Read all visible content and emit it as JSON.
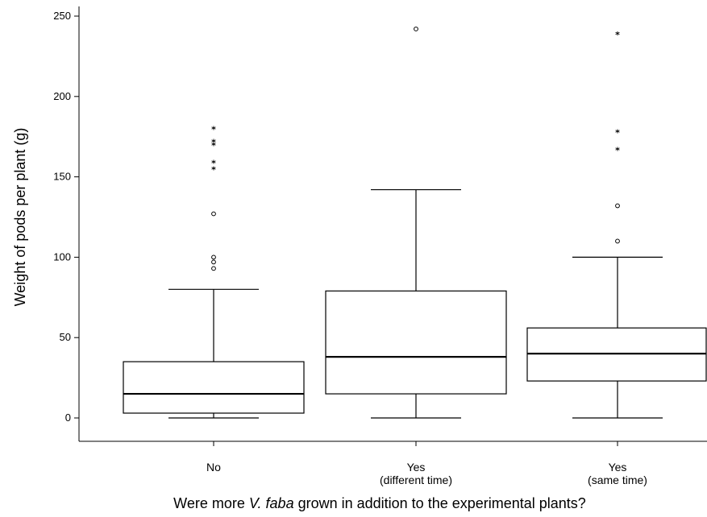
{
  "chart_data": {
    "type": "box",
    "xlabel_parts": [
      "Were more ",
      "V. faba",
      " grown in addition to the experimental plants?"
    ],
    "ylabel": "Weight of pods per plant (g)",
    "ylim": [
      -15,
      255
    ],
    "yticks": [
      0,
      50,
      100,
      150,
      200,
      250
    ],
    "grid": false,
    "categories": [
      {
        "line1": "No",
        "line2": ""
      },
      {
        "line1": "Yes",
        "line2": "(different time)"
      },
      {
        "line1": "Yes",
        "line2": "(same time)"
      }
    ],
    "boxes": [
      {
        "whisker_low": 0,
        "q1": 3,
        "median": 15,
        "q3": 35,
        "whisker_high": 80,
        "outliers": [
          93,
          97,
          100,
          127
        ],
        "extremes": [
          155,
          159,
          170,
          172,
          180
        ]
      },
      {
        "whisker_low": 0,
        "q1": 15,
        "median": 38,
        "q3": 79,
        "whisker_high": 142,
        "outliers": [
          242
        ],
        "extremes": []
      },
      {
        "whisker_low": 0,
        "q1": 23,
        "median": 40,
        "q3": 56,
        "whisker_high": 100,
        "outliers": [
          110,
          132
        ],
        "extremes": [
          167,
          178,
          239
        ]
      }
    ],
    "outlier_symbol": "○",
    "extreme_symbol": "*"
  }
}
